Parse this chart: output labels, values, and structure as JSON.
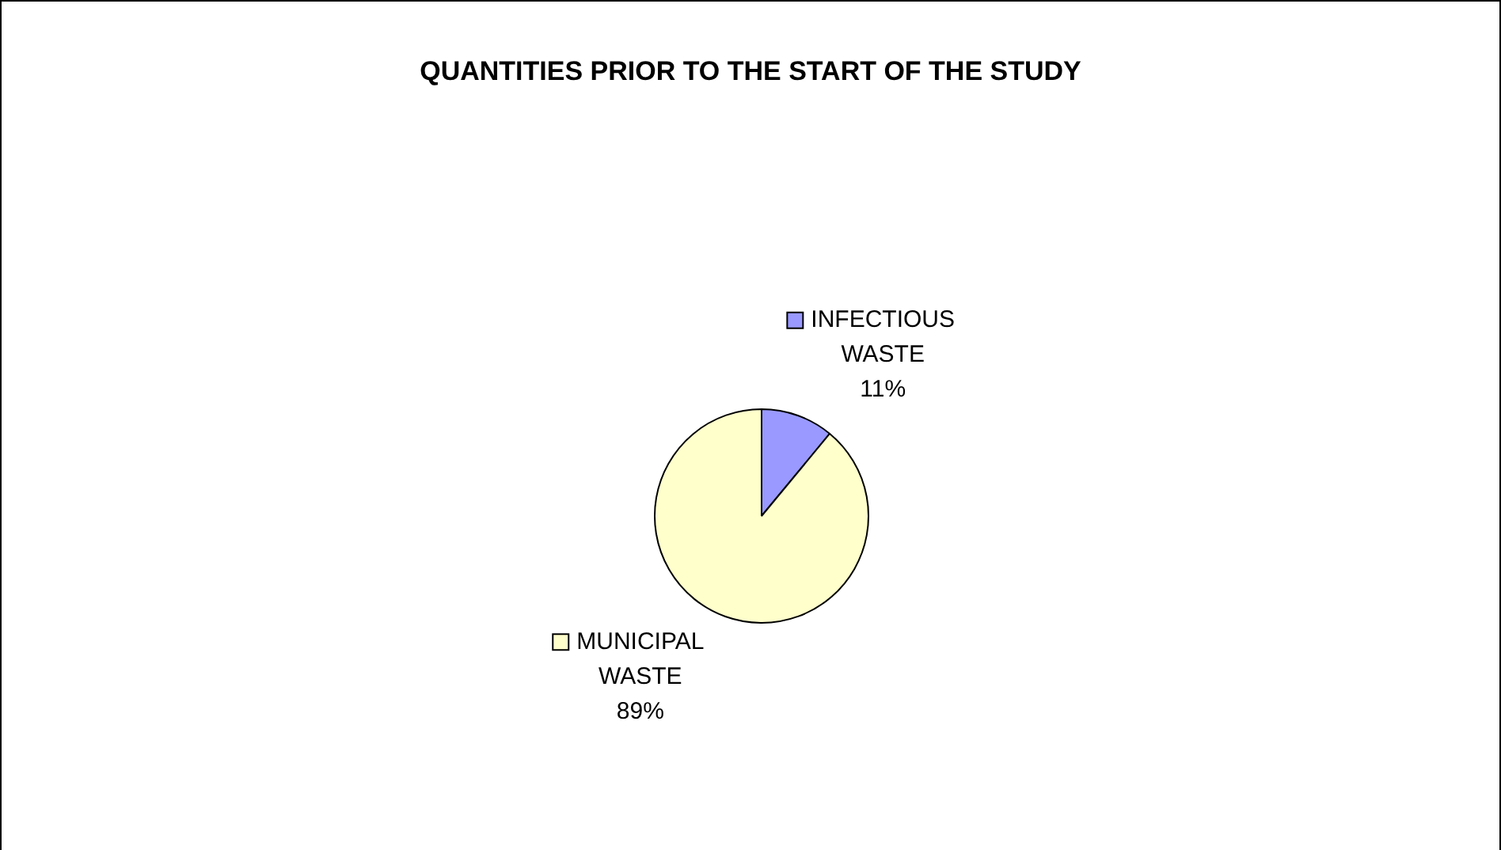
{
  "chart_data": {
    "type": "pie",
    "title": "QUANTITIES PRIOR TO THE START OF THE STUDY",
    "categories": [
      "INFECTIOUS WASTE",
      "MUNICIPAL WASTE"
    ],
    "values": [
      11,
      89
    ],
    "value_labels": [
      "11%",
      "89%"
    ],
    "colors": [
      "#9999ff",
      "#ffffcc"
    ],
    "legend": "right"
  }
}
